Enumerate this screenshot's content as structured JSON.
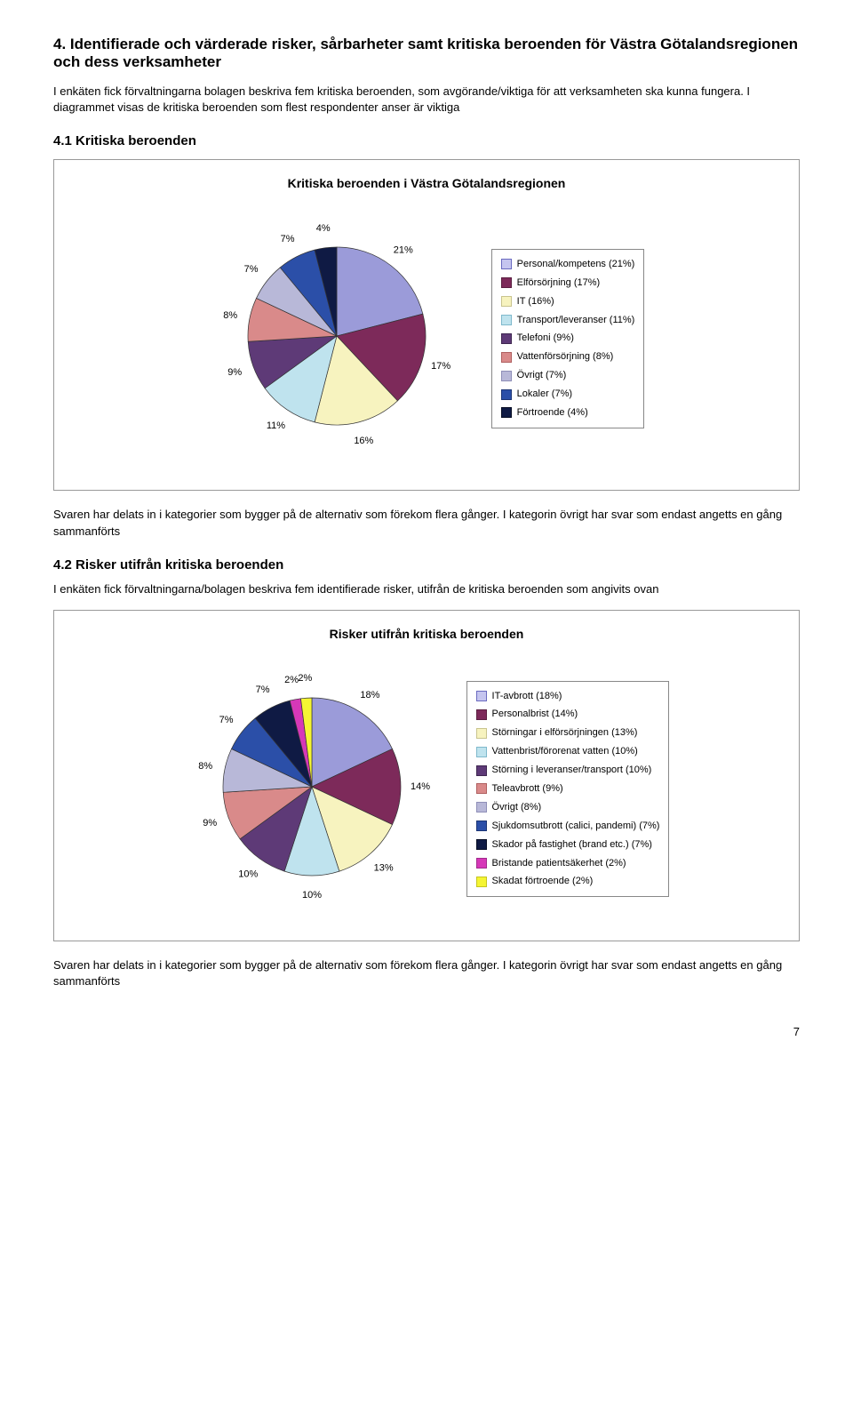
{
  "section4": {
    "heading": "4. Identifierade och värderade risker, sårbarheter samt kritiska beroenden för Västra Götalandsregionen och dess verksamheter",
    "intro": "I enkäten fick förvaltningarna bolagen beskriva fem kritiska beroenden, som avgörande/viktiga för att verksamheten ska kunna fungera. I diagrammet visas de kritiska beroenden som flest respondenter anser är viktiga"
  },
  "section4_1": {
    "heading": "4.1 Kritiska beroenden",
    "figure_title": "Kritiska beroenden i Västra Götalandsregionen",
    "after": "Svaren har delats in i kategorier som bygger på de alternativ som förekom flera gånger. I kategorin övrigt har svar som endast angetts en gång sammanförts",
    "chart": {
      "type": "pie",
      "slices": [
        {
          "label": "Personal/kompetens (21%)",
          "value": 21,
          "label_pct": "21%",
          "color": "#9b9bd9",
          "swatch_fill": "#c5c5ef",
          "swatch_border": "#6a6ac0"
        },
        {
          "label": "Elförsörjning (17%)",
          "value": 17,
          "label_pct": "17%",
          "color": "#7d2a5a",
          "swatch_fill": "#7d2a5a",
          "swatch_border": "#5a1e40"
        },
        {
          "label": "IT (16%)",
          "value": 16,
          "label_pct": "16%",
          "color": "#f7f3bf",
          "swatch_fill": "#f7f3bf",
          "swatch_border": "#c9c48e"
        },
        {
          "label": "Transport/leveranser (11%)",
          "value": 11,
          "label_pct": "11%",
          "color": "#bfe3ee",
          "swatch_fill": "#bfe3ee",
          "swatch_border": "#7fb9cc"
        },
        {
          "label": "Telefoni (9%)",
          "value": 9,
          "label_pct": "9%",
          "color": "#5e3a77",
          "swatch_fill": "#5e3a77",
          "swatch_border": "#3e2650"
        },
        {
          "label": "Vattenförsörjning (8%)",
          "value": 8,
          "label_pct": "8%",
          "color": "#d98a8a",
          "swatch_fill": "#d98a8a",
          "swatch_border": "#b06060"
        },
        {
          "label": "Övrigt (7%)",
          "value": 7,
          "label_pct": "7%",
          "color": "#b8b8d8",
          "swatch_fill": "#b8b8d8",
          "swatch_border": "#8f8fb8"
        },
        {
          "label": "Lokaler (7%)",
          "value": 7,
          "label_pct": "7%",
          "color": "#2b4fa8",
          "swatch_fill": "#2b4fa8",
          "swatch_border": "#1c3575"
        },
        {
          "label": "Förtroende (4%)",
          "value": 4,
          "label_pct": "4%",
          "color": "#0f1a44",
          "swatch_fill": "#0f1a44",
          "swatch_border": "#060c22"
        }
      ],
      "radius": 100,
      "label_fontsize": 11,
      "stroke": "#333333"
    }
  },
  "section4_2": {
    "heading": "4.2 Risker utifrån kritiska beroenden",
    "intro": "I enkäten fick förvaltningarna/bolagen beskriva fem identifierade risker, utifrån de kritiska beroenden som angivits ovan",
    "figure_title": "Risker utifrån kritiska beroenden",
    "after": "Svaren har delats in i kategorier som bygger på de alternativ som förekom flera gånger. I kategorin övrigt har svar som endast angetts en gång sammanförts",
    "chart": {
      "type": "pie",
      "slices": [
        {
          "label": "IT-avbrott (18%)",
          "value": 18,
          "label_pct": "18%",
          "color": "#9b9bd9",
          "swatch_fill": "#c5c5ef",
          "swatch_border": "#6a6ac0"
        },
        {
          "label": "Personalbrist (14%)",
          "value": 14,
          "label_pct": "14%",
          "color": "#7d2a5a",
          "swatch_fill": "#7d2a5a",
          "swatch_border": "#5a1e40"
        },
        {
          "label": "Störningar i elförsörjningen (13%)",
          "value": 13,
          "label_pct": "13%",
          "color": "#f7f3bf",
          "swatch_fill": "#f7f3bf",
          "swatch_border": "#c9c48e"
        },
        {
          "label": "Vattenbrist/förorenat vatten (10%)",
          "value": 10,
          "label_pct": "10%",
          "color": "#bfe3ee",
          "swatch_fill": "#bfe3ee",
          "swatch_border": "#7fb9cc"
        },
        {
          "label": "Störning i leveranser/transport (10%)",
          "value": 10,
          "label_pct": "10%",
          "color": "#5e3a77",
          "swatch_fill": "#5e3a77",
          "swatch_border": "#3e2650"
        },
        {
          "label": "Teleavbrott (9%)",
          "value": 9,
          "label_pct": "9%",
          "color": "#d98a8a",
          "swatch_fill": "#d98a8a",
          "swatch_border": "#b06060"
        },
        {
          "label": "Övrigt (8%)",
          "value": 8,
          "label_pct": "8%",
          "color": "#b8b8d8",
          "swatch_fill": "#b8b8d8",
          "swatch_border": "#8f8fb8"
        },
        {
          "label": "Sjukdomsutbrott (calici, pandemi) (7%)",
          "value": 7,
          "label_pct": "7%",
          "color": "#2b4fa8",
          "swatch_fill": "#2b4fa8",
          "swatch_border": "#1c3575"
        },
        {
          "label": "Skador på fastighet (brand etc.) (7%)",
          "value": 7,
          "label_pct": "7%",
          "color": "#0f1a44",
          "swatch_fill": "#0f1a44",
          "swatch_border": "#060c22"
        },
        {
          "label": "Bristande patientsäkerhet (2%)",
          "value": 2,
          "label_pct": "2%",
          "color": "#d638b8",
          "swatch_fill": "#d638b8",
          "swatch_border": "#a12a8c"
        },
        {
          "label": "Skadat förtroende (2%)",
          "value": 2,
          "label_pct": "2%",
          "color": "#f5f533",
          "swatch_fill": "#f5f533",
          "swatch_border": "#c5c520"
        }
      ],
      "radius": 100,
      "label_fontsize": 11,
      "stroke": "#333333"
    }
  },
  "page_number": "7"
}
